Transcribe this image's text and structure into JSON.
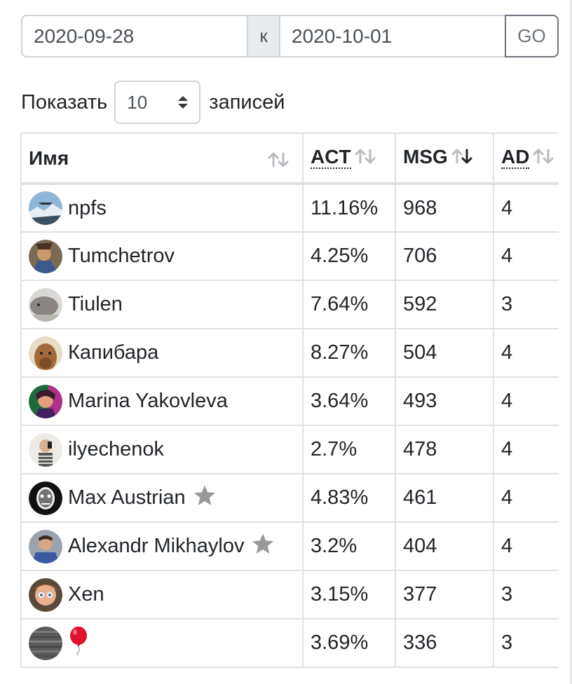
{
  "date_range": {
    "from": "2020-09-28",
    "separator": "к",
    "to": "2020-10-01",
    "go_label": "GO"
  },
  "page_length": {
    "prefix": "Показать",
    "value": "10",
    "suffix": "записей"
  },
  "table": {
    "columns": [
      {
        "label": "Имя",
        "sort": "none"
      },
      {
        "label": "ACT",
        "sort": "none"
      },
      {
        "label": "MSG",
        "sort": "desc"
      },
      {
        "label": "AD",
        "sort": "none"
      }
    ],
    "rows": [
      {
        "name": "npfs",
        "act": "11.16%",
        "msg": "968",
        "ad": "4",
        "star": false,
        "avatar": "mountain-plane"
      },
      {
        "name": "Tumchetrov",
        "act": "4.25%",
        "msg": "706",
        "ad": "4",
        "star": false,
        "avatar": "person-photo"
      },
      {
        "name": "Tiulen",
        "act": "7.64%",
        "msg": "592",
        "ad": "3",
        "star": false,
        "avatar": "seal-photo"
      },
      {
        "name": "Капибара",
        "act": "8.27%",
        "msg": "504",
        "ad": "4",
        "star": false,
        "avatar": "capybara-photo"
      },
      {
        "name": "Marina Yakovleva",
        "act": "3.64%",
        "msg": "493",
        "ad": "4",
        "star": false,
        "avatar": "neon-portrait"
      },
      {
        "name": "ilyechenok",
        "act": "2.7%",
        "msg": "478",
        "ad": "4",
        "star": false,
        "avatar": "selfie-photo"
      },
      {
        "name": "Max Austrian",
        "act": "4.83%",
        "msg": "461",
        "ad": "4",
        "star": true,
        "avatar": "mask-portrait"
      },
      {
        "name": "Alexandr Mikhaylov",
        "act": "3.2%",
        "msg": "404",
        "ad": "4",
        "star": true,
        "avatar": "man-portrait"
      },
      {
        "name": "Xen",
        "act": "3.15%",
        "msg": "377",
        "ad": "3",
        "star": false,
        "avatar": "doll-photo"
      },
      {
        "name": "",
        "act": "3.69%",
        "msg": "336",
        "ad": "3",
        "star": false,
        "avatar": "static-noise",
        "emoji": "balloon"
      }
    ]
  },
  "colors": {
    "border": "#dee2e6",
    "input_border": "#ced4da",
    "addon_bg": "#e9ecef",
    "go_border": "#6c757d",
    "star": "#999999",
    "balloon": "#e0112b"
  }
}
